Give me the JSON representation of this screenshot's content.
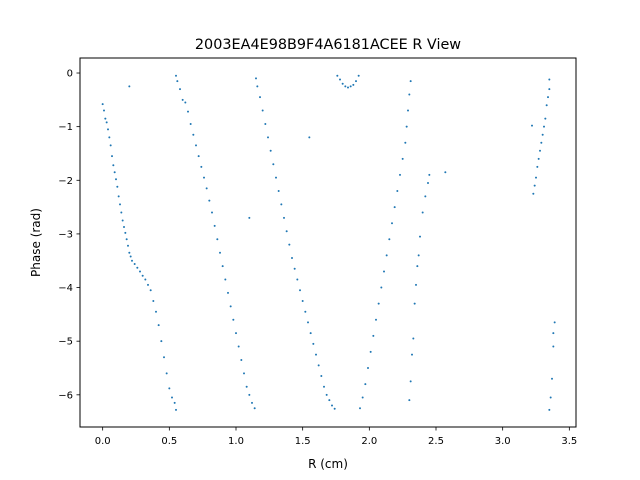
{
  "chart_data": {
    "type": "scatter",
    "title": "2003EA4E98B9F4A6181ACEE R View",
    "xlabel": "R (cm)",
    "ylabel": "Phase (rad)",
    "xlim": [
      -0.17,
      3.55
    ],
    "ylim": [
      -6.6,
      0.28
    ],
    "xticks": [
      0.0,
      0.5,
      1.0,
      1.5,
      2.0,
      2.5,
      3.0,
      3.5
    ],
    "xtick_labels": [
      "0.0",
      "0.5",
      "1.0",
      "1.5",
      "2.0",
      "2.5",
      "3.0",
      "3.5"
    ],
    "yticks": [
      0,
      -1,
      -2,
      -3,
      -4,
      -5,
      -6
    ],
    "ytick_labels": [
      "0",
      "−1",
      "−2",
      "−3",
      "−4",
      "−5",
      "−6"
    ],
    "grid": false,
    "legend": "none",
    "marker_color": "#1f77b4",
    "series": [
      {
        "points": [
          [
            0.0,
            -0.58
          ],
          [
            0.01,
            -0.7
          ],
          [
            0.02,
            -0.85
          ],
          [
            0.03,
            -0.92
          ],
          [
            0.04,
            -1.05
          ],
          [
            0.05,
            -1.2
          ],
          [
            0.06,
            -1.35
          ],
          [
            0.07,
            -1.55
          ],
          [
            0.08,
            -1.72
          ],
          [
            0.09,
            -1.85
          ],
          [
            0.1,
            -1.98
          ],
          [
            0.11,
            -2.12
          ],
          [
            0.12,
            -2.3
          ],
          [
            0.13,
            -2.45
          ],
          [
            0.14,
            -2.6
          ],
          [
            0.15,
            -2.75
          ],
          [
            0.16,
            -2.87
          ],
          [
            0.17,
            -2.98
          ],
          [
            0.18,
            -3.1
          ],
          [
            0.19,
            -3.22
          ],
          [
            0.2,
            -3.35
          ],
          [
            0.21,
            -3.42
          ],
          [
            0.22,
            -3.5
          ],
          [
            0.24,
            -3.56
          ],
          [
            0.26,
            -3.63
          ],
          [
            0.28,
            -3.7
          ],
          [
            0.3,
            -3.78
          ],
          [
            0.32,
            -3.85
          ],
          [
            0.34,
            -3.95
          ],
          [
            0.36,
            -4.05
          ],
          [
            0.38,
            -4.25
          ],
          [
            0.4,
            -4.45
          ],
          [
            0.42,
            -4.7
          ],
          [
            0.44,
            -5.0
          ],
          [
            0.46,
            -5.3
          ],
          [
            0.48,
            -5.6
          ],
          [
            0.5,
            -5.88
          ],
          [
            0.52,
            -6.05
          ],
          [
            0.54,
            -6.15
          ],
          [
            0.55,
            -6.28
          ],
          [
            0.2,
            -0.25
          ],
          [
            0.55,
            -0.05
          ],
          [
            0.56,
            -0.15
          ],
          [
            0.58,
            -0.3
          ],
          [
            0.6,
            -0.5
          ],
          [
            0.62,
            -0.55
          ],
          [
            0.64,
            -0.72
          ],
          [
            0.66,
            -0.95
          ],
          [
            0.68,
            -1.15
          ],
          [
            0.7,
            -1.35
          ],
          [
            0.72,
            -1.55
          ],
          [
            0.74,
            -1.75
          ],
          [
            0.76,
            -1.95
          ],
          [
            0.78,
            -2.15
          ],
          [
            0.8,
            -2.38
          ],
          [
            0.82,
            -2.6
          ],
          [
            0.84,
            -2.85
          ],
          [
            0.86,
            -3.1
          ],
          [
            0.88,
            -3.35
          ],
          [
            0.9,
            -3.6
          ],
          [
            0.92,
            -3.85
          ],
          [
            0.94,
            -4.1
          ],
          [
            0.96,
            -4.35
          ],
          [
            0.98,
            -4.6
          ],
          [
            1.0,
            -4.85
          ],
          [
            1.02,
            -5.1
          ],
          [
            1.04,
            -5.35
          ],
          [
            1.06,
            -5.6
          ],
          [
            1.08,
            -5.85
          ],
          [
            1.1,
            -6.0
          ],
          [
            1.12,
            -6.15
          ],
          [
            1.14,
            -6.25
          ],
          [
            1.1,
            -2.7
          ],
          [
            1.15,
            -0.1
          ],
          [
            1.16,
            -0.25
          ],
          [
            1.18,
            -0.45
          ],
          [
            1.2,
            -0.7
          ],
          [
            1.22,
            -0.95
          ],
          [
            1.24,
            -1.2
          ],
          [
            1.26,
            -1.45
          ],
          [
            1.28,
            -1.7
          ],
          [
            1.3,
            -1.95
          ],
          [
            1.32,
            -2.2
          ],
          [
            1.34,
            -2.45
          ],
          [
            1.36,
            -2.7
          ],
          [
            1.38,
            -2.95
          ],
          [
            1.4,
            -3.2
          ],
          [
            1.42,
            -3.45
          ],
          [
            1.44,
            -3.65
          ],
          [
            1.46,
            -3.85
          ],
          [
            1.48,
            -4.05
          ],
          [
            1.5,
            -4.25
          ],
          [
            1.52,
            -4.45
          ],
          [
            1.54,
            -4.65
          ],
          [
            1.56,
            -4.85
          ],
          [
            1.58,
            -5.05
          ],
          [
            1.6,
            -5.25
          ],
          [
            1.62,
            -5.45
          ],
          [
            1.64,
            -5.65
          ],
          [
            1.66,
            -5.85
          ],
          [
            1.68,
            -6.0
          ],
          [
            1.7,
            -6.1
          ],
          [
            1.72,
            -6.2
          ],
          [
            1.74,
            -6.26
          ],
          [
            1.55,
            -1.2
          ],
          [
            1.76,
            -0.05
          ],
          [
            1.78,
            -0.12
          ],
          [
            1.8,
            -0.2
          ],
          [
            1.82,
            -0.25
          ],
          [
            1.84,
            -0.27
          ],
          [
            1.86,
            -0.25
          ],
          [
            1.88,
            -0.22
          ],
          [
            1.9,
            -0.15
          ],
          [
            1.92,
            -0.05
          ],
          [
            1.93,
            -6.25
          ],
          [
            1.95,
            -6.05
          ],
          [
            1.97,
            -5.8
          ],
          [
            1.99,
            -5.5
          ],
          [
            2.01,
            -5.2
          ],
          [
            2.03,
            -4.9
          ],
          [
            2.05,
            -4.6
          ],
          [
            2.07,
            -4.3
          ],
          [
            2.09,
            -4.0
          ],
          [
            2.11,
            -3.7
          ],
          [
            2.13,
            -3.4
          ],
          [
            2.15,
            -3.1
          ],
          [
            2.17,
            -2.8
          ],
          [
            2.19,
            -2.5
          ],
          [
            2.21,
            -2.2
          ],
          [
            2.23,
            -1.9
          ],
          [
            2.25,
            -1.6
          ],
          [
            2.27,
            -1.3
          ],
          [
            2.28,
            -1.0
          ],
          [
            2.29,
            -0.7
          ],
          [
            2.3,
            -0.4
          ],
          [
            2.31,
            -0.15
          ],
          [
            2.3,
            -6.1
          ],
          [
            2.31,
            -5.75
          ],
          [
            2.32,
            -5.25
          ],
          [
            2.33,
            -4.95
          ],
          [
            2.34,
            -4.3
          ],
          [
            2.35,
            -3.95
          ],
          [
            2.36,
            -3.6
          ],
          [
            2.37,
            -3.4
          ],
          [
            2.38,
            -3.05
          ],
          [
            2.4,
            -2.6
          ],
          [
            2.42,
            -2.3
          ],
          [
            2.44,
            -2.05
          ],
          [
            2.45,
            -1.9
          ],
          [
            2.57,
            -1.85
          ],
          [
            3.22,
            -0.98
          ],
          [
            3.23,
            -2.25
          ],
          [
            3.24,
            -2.1
          ],
          [
            3.25,
            -1.95
          ],
          [
            3.26,
            -1.75
          ],
          [
            3.27,
            -1.6
          ],
          [
            3.28,
            -1.45
          ],
          [
            3.29,
            -1.3
          ],
          [
            3.3,
            -1.15
          ],
          [
            3.31,
            -1.0
          ],
          [
            3.32,
            -0.85
          ],
          [
            3.33,
            -0.6
          ],
          [
            3.34,
            -0.45
          ],
          [
            3.35,
            -0.3
          ],
          [
            3.35,
            -0.12
          ],
          [
            3.35,
            -6.28
          ],
          [
            3.36,
            -6.05
          ],
          [
            3.37,
            -5.7
          ],
          [
            3.38,
            -5.1
          ],
          [
            3.38,
            -4.85
          ],
          [
            3.39,
            -4.65
          ]
        ]
      }
    ]
  }
}
